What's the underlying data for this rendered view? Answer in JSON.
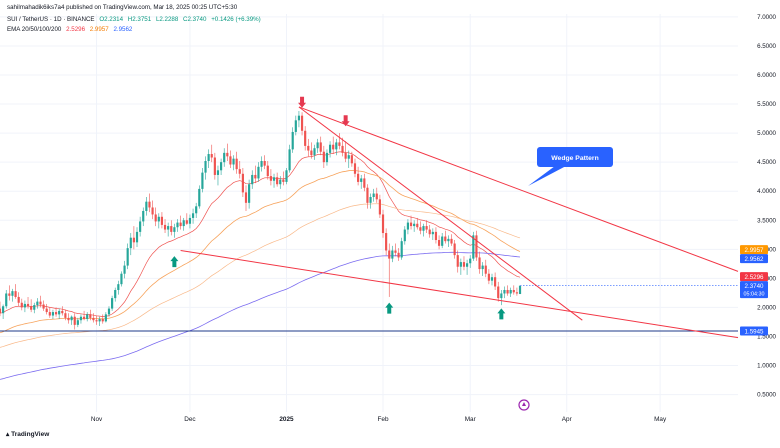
{
  "header": {
    "published": "sahilmahadik6iks7a4 published on TradingView.com, Mar 18, 2025 00:25 UTC+5:30",
    "symbol": "SUI / TetherUS · 1D · BINANCE",
    "open": "O2.2314",
    "high": "H2.3751",
    "low": "L2.2288",
    "close": "C2.3740",
    "change": "+0.1426 (+6.39%)",
    "ema_label": "EMA 20/50/100/200",
    "ema_values": [
      "2.5296",
      "2.9957",
      "2.9562"
    ]
  },
  "footer": {
    "logo_text": "TradingView"
  },
  "annotation": {
    "label": "Wedge Pattern"
  },
  "colors": {
    "up": "#26a69a",
    "down": "#ef5350",
    "ema20": "#ef5350",
    "ema50": "#f7a35c",
    "ema100": "#f9b98a",
    "ema200": "#7b6cf0",
    "trendline": "#f23645",
    "support": "#1e3a8a",
    "badge_blue": "#2962ff",
    "badge_orange": "#ff9800",
    "badge_red": "#f23645"
  },
  "chart_data": {
    "type": "candlestick",
    "y_axis": {
      "ticks": [
        "7.0000",
        "6.5000",
        "6.0000",
        "5.5000",
        "5.0000",
        "4.5000",
        "4.0000",
        "3.5000",
        "3.0000",
        "2.5000",
        "2.0000",
        "1.5000",
        "1.0000",
        "0.5000"
      ],
      "range": [
        0.2,
        7.05
      ]
    },
    "x_axis": {
      "ticks": [
        "Nov",
        "Dec",
        "2025",
        "Feb",
        "Mar",
        "Apr",
        "May"
      ]
    },
    "x_tick_dates": [
      "2024-11-01",
      "2024-12-01",
      "2025-01-01",
      "2025-02-01",
      "2025-03-01",
      "2025-04-01",
      "2025-05-01"
    ],
    "date_range": [
      "2024-10-01",
      "2025-05-26"
    ],
    "price_labels": [
      {
        "value": 2.9957,
        "text": "2.9957",
        "color": "#ff9800"
      },
      {
        "value": 2.9562,
        "text": "2.9562",
        "color": "#2962ff"
      },
      {
        "value": 2.5296,
        "text": "2.5296",
        "color": "#f23645"
      },
      {
        "value": 2.374,
        "text": "2.3740",
        "sub": "05:04:30",
        "color": "#2962ff"
      },
      {
        "value": 1.5945,
        "text": "1.5945",
        "color": "#2962ff"
      }
    ],
    "horizontal_line": {
      "value": 1.5945
    },
    "trendlines": [
      {
        "from": [
          "2024-11-28",
          2.98
        ],
        "to": [
          "2025-05-26",
          1.48
        ]
      },
      {
        "from": [
          "2025-01-05",
          5.45
        ],
        "to": [
          "2025-05-26",
          2.62
        ]
      },
      {
        "from": [
          "2025-01-05",
          5.45
        ],
        "to": [
          "2025-04-06",
          1.78
        ]
      }
    ],
    "markers": [
      {
        "date": "2025-01-06",
        "value": 5.42,
        "dir": "down"
      },
      {
        "date": "2025-01-20",
        "value": 5.1,
        "dir": "down"
      },
      {
        "date": "2024-11-26",
        "value": 2.9,
        "dir": "up"
      },
      {
        "date": "2025-02-03",
        "value": 2.1,
        "dir": "up"
      },
      {
        "date": "2025-03-11",
        "value": 2.0,
        "dir": "up"
      }
    ],
    "candles": [
      [
        "2024-10-01",
        1.98,
        2.1,
        1.85,
        1.9
      ],
      [
        "2024-10-02",
        1.9,
        2.05,
        1.8,
        2.02
      ],
      [
        "2024-10-03",
        2.02,
        2.3,
        1.98,
        2.24
      ],
      [
        "2024-10-04",
        2.24,
        2.38,
        2.12,
        2.2
      ],
      [
        "2024-10-05",
        2.2,
        2.32,
        2.1,
        2.28
      ],
      [
        "2024-10-06",
        2.28,
        2.4,
        2.15,
        2.18
      ],
      [
        "2024-10-07",
        2.18,
        2.26,
        2.02,
        2.08
      ],
      [
        "2024-10-08",
        2.08,
        2.15,
        1.95,
        2.0
      ],
      [
        "2024-10-09",
        2.0,
        2.12,
        1.92,
        2.06
      ],
      [
        "2024-10-10",
        2.06,
        2.18,
        1.98,
        2.02
      ],
      [
        "2024-10-11",
        2.02,
        2.14,
        1.92,
        1.96
      ],
      [
        "2024-10-12",
        1.96,
        2.08,
        1.9,
        2.04
      ],
      [
        "2024-10-13",
        2.04,
        2.16,
        1.98,
        2.1
      ],
      [
        "2024-10-14",
        2.1,
        2.2,
        2.0,
        2.05
      ],
      [
        "2024-10-15",
        2.05,
        2.12,
        1.94,
        1.98
      ],
      [
        "2024-10-16",
        1.98,
        2.06,
        1.88,
        1.92
      ],
      [
        "2024-10-17",
        1.92,
        2.0,
        1.82,
        1.86
      ],
      [
        "2024-10-18",
        1.86,
        1.96,
        1.8,
        1.92
      ],
      [
        "2024-10-19",
        1.92,
        2.0,
        1.84,
        1.88
      ],
      [
        "2024-10-20",
        1.88,
        1.98,
        1.8,
        1.94
      ],
      [
        "2024-10-21",
        1.94,
        2.02,
        1.86,
        1.9
      ],
      [
        "2024-10-22",
        1.9,
        1.96,
        1.78,
        1.82
      ],
      [
        "2024-10-23",
        1.82,
        1.9,
        1.72,
        1.78
      ],
      [
        "2024-10-24",
        1.78,
        1.86,
        1.7,
        1.84
      ],
      [
        "2024-10-25",
        1.84,
        1.9,
        1.62,
        1.7
      ],
      [
        "2024-10-26",
        1.7,
        1.82,
        1.66,
        1.78
      ],
      [
        "2024-10-27",
        1.78,
        1.88,
        1.72,
        1.84
      ],
      [
        "2024-10-28",
        1.84,
        1.94,
        1.78,
        1.8
      ],
      [
        "2024-10-29",
        1.8,
        1.92,
        1.76,
        1.88
      ],
      [
        "2024-10-30",
        1.88,
        1.96,
        1.78,
        1.82
      ],
      [
        "2024-10-31",
        1.82,
        1.9,
        1.74,
        1.78
      ],
      [
        "2024-11-01",
        1.78,
        1.86,
        1.7,
        1.76
      ],
      [
        "2024-11-02",
        1.76,
        1.84,
        1.68,
        1.8
      ],
      [
        "2024-11-03",
        1.8,
        1.88,
        1.72,
        1.76
      ],
      [
        "2024-11-04",
        1.76,
        1.92,
        1.74,
        1.88
      ],
      [
        "2024-11-05",
        1.88,
        2.02,
        1.84,
        1.98
      ],
      [
        "2024-11-06",
        1.98,
        2.2,
        1.94,
        2.16
      ],
      [
        "2024-11-07",
        2.16,
        2.34,
        2.1,
        2.3
      ],
      [
        "2024-11-08",
        2.3,
        2.46,
        2.22,
        2.4
      ],
      [
        "2024-11-09",
        2.4,
        2.62,
        2.36,
        2.58
      ],
      [
        "2024-11-10",
        2.58,
        2.8,
        2.5,
        2.72
      ],
      [
        "2024-11-11",
        2.72,
        3.1,
        2.66,
        3.02
      ],
      [
        "2024-11-12",
        3.02,
        3.28,
        2.9,
        3.2
      ],
      [
        "2024-11-13",
        3.2,
        3.4,
        3.0,
        3.12
      ],
      [
        "2024-11-14",
        3.12,
        3.38,
        3.04,
        3.3
      ],
      [
        "2024-11-15",
        3.3,
        3.56,
        3.22,
        3.48
      ],
      [
        "2024-11-16",
        3.48,
        3.72,
        3.4,
        3.66
      ],
      [
        "2024-11-17",
        3.66,
        3.9,
        3.58,
        3.82
      ],
      [
        "2024-11-18",
        3.82,
        3.96,
        3.64,
        3.72
      ],
      [
        "2024-11-19",
        3.72,
        3.84,
        3.52,
        3.6
      ],
      [
        "2024-11-20",
        3.6,
        3.72,
        3.4,
        3.48
      ],
      [
        "2024-11-21",
        3.48,
        3.62,
        3.36,
        3.56
      ],
      [
        "2024-11-22",
        3.56,
        3.64,
        3.36,
        3.42
      ],
      [
        "2024-11-23",
        3.42,
        3.52,
        3.28,
        3.34
      ],
      [
        "2024-11-24",
        3.34,
        3.46,
        3.22,
        3.4
      ],
      [
        "2024-11-25",
        3.4,
        3.5,
        3.24,
        3.3
      ],
      [
        "2024-11-26",
        3.3,
        3.44,
        3.2,
        3.38
      ],
      [
        "2024-11-27",
        3.38,
        3.52,
        3.3,
        3.46
      ],
      [
        "2024-11-28",
        3.46,
        3.58,
        3.34,
        3.4
      ],
      [
        "2024-11-29",
        3.4,
        3.54,
        3.32,
        3.5
      ],
      [
        "2024-11-30",
        3.5,
        3.62,
        3.42,
        3.44
      ],
      [
        "2024-12-01",
        3.44,
        3.6,
        3.36,
        3.54
      ],
      [
        "2024-12-02",
        3.54,
        3.7,
        3.44,
        3.62
      ],
      [
        "2024-12-03",
        3.62,
        3.8,
        3.54,
        3.74
      ],
      [
        "2024-12-04",
        3.74,
        4.1,
        3.7,
        4.04
      ],
      [
        "2024-12-05",
        4.04,
        4.4,
        3.98,
        4.32
      ],
      [
        "2024-12-06",
        4.32,
        4.6,
        4.2,
        4.52
      ],
      [
        "2024-12-07",
        4.52,
        4.72,
        4.4,
        4.64
      ],
      [
        "2024-12-08",
        4.64,
        4.8,
        4.5,
        4.58
      ],
      [
        "2024-12-09",
        4.58,
        4.66,
        4.2,
        4.28
      ],
      [
        "2024-12-10",
        4.28,
        4.44,
        4.1,
        4.36
      ],
      [
        "2024-12-11",
        4.36,
        4.56,
        4.28,
        4.5
      ],
      [
        "2024-12-12",
        4.5,
        4.74,
        4.42,
        4.66
      ],
      [
        "2024-12-13",
        4.66,
        4.82,
        4.52,
        4.6
      ],
      [
        "2024-12-14",
        4.6,
        4.7,
        4.4,
        4.46
      ],
      [
        "2024-12-15",
        4.46,
        4.62,
        4.36,
        4.56
      ],
      [
        "2024-12-16",
        4.56,
        4.68,
        4.3,
        4.38
      ],
      [
        "2024-12-17",
        4.38,
        4.52,
        4.22,
        4.3
      ],
      [
        "2024-12-18",
        4.3,
        4.4,
        3.9,
        3.98
      ],
      [
        "2024-12-19",
        3.98,
        4.1,
        3.66,
        3.8
      ],
      [
        "2024-12-20",
        3.8,
        4.2,
        3.7,
        4.12
      ],
      [
        "2024-12-21",
        4.12,
        4.36,
        4.04,
        4.28
      ],
      [
        "2024-12-22",
        4.28,
        4.44,
        4.14,
        4.22
      ],
      [
        "2024-12-23",
        4.22,
        4.5,
        4.16,
        4.42
      ],
      [
        "2024-12-24",
        4.42,
        4.6,
        4.34,
        4.52
      ],
      [
        "2024-12-25",
        4.52,
        4.62,
        4.38,
        4.44
      ],
      [
        "2024-12-26",
        4.44,
        4.52,
        4.2,
        4.26
      ],
      [
        "2024-12-27",
        4.26,
        4.38,
        4.1,
        4.18
      ],
      [
        "2024-12-28",
        4.18,
        4.3,
        4.06,
        4.24
      ],
      [
        "2024-12-29",
        4.24,
        4.32,
        4.08,
        4.12
      ],
      [
        "2024-12-30",
        4.12,
        4.26,
        4.04,
        4.2
      ],
      [
        "2024-12-31",
        4.2,
        4.34,
        4.1,
        4.16
      ],
      [
        "2025-01-01",
        4.16,
        4.4,
        4.12,
        4.36
      ],
      [
        "2025-01-02",
        4.36,
        4.8,
        4.32,
        4.72
      ],
      [
        "2025-01-03",
        4.72,
        5.1,
        4.66,
        5.02
      ],
      [
        "2025-01-04",
        5.02,
        5.3,
        4.96,
        5.22
      ],
      [
        "2025-01-05",
        5.22,
        5.38,
        5.1,
        5.3
      ],
      [
        "2025-01-06",
        5.3,
        5.36,
        4.96,
        5.04
      ],
      [
        "2025-01-07",
        5.04,
        5.12,
        4.7,
        4.78
      ],
      [
        "2025-01-08",
        4.78,
        4.9,
        4.6,
        4.7
      ],
      [
        "2025-01-09",
        4.7,
        4.84,
        4.56,
        4.62
      ],
      [
        "2025-01-10",
        4.62,
        4.8,
        4.54,
        4.74
      ],
      [
        "2025-01-11",
        4.74,
        4.9,
        4.66,
        4.84
      ],
      [
        "2025-01-12",
        4.84,
        4.94,
        4.62,
        4.68
      ],
      [
        "2025-01-13",
        4.68,
        4.78,
        4.4,
        4.5
      ],
      [
        "2025-01-14",
        4.5,
        4.72,
        4.44,
        4.66
      ],
      [
        "2025-01-15",
        4.66,
        4.86,
        4.58,
        4.8
      ],
      [
        "2025-01-16",
        4.8,
        4.94,
        4.64,
        4.72
      ],
      [
        "2025-01-17",
        4.72,
        4.9,
        4.62,
        4.84
      ],
      [
        "2025-01-18",
        4.84,
        5.0,
        4.72,
        4.78
      ],
      [
        "2025-01-19",
        4.78,
        4.92,
        4.6,
        4.66
      ],
      [
        "2025-01-20",
        4.66,
        4.86,
        4.5,
        4.56
      ],
      [
        "2025-01-21",
        4.56,
        4.7,
        4.4,
        4.62
      ],
      [
        "2025-01-22",
        4.62,
        4.68,
        4.42,
        4.48
      ],
      [
        "2025-01-23",
        4.48,
        4.56,
        4.24,
        4.3
      ],
      [
        "2025-01-24",
        4.3,
        4.42,
        4.1,
        4.16
      ],
      [
        "2025-01-25",
        4.16,
        4.28,
        4.04,
        4.22
      ],
      [
        "2025-01-26",
        4.22,
        4.3,
        4.0,
        4.06
      ],
      [
        "2025-01-27",
        4.06,
        4.12,
        3.7,
        3.8
      ],
      [
        "2025-01-28",
        3.8,
        3.96,
        3.7,
        3.9
      ],
      [
        "2025-01-29",
        3.9,
        4.04,
        3.82,
        3.96
      ],
      [
        "2025-01-30",
        3.96,
        4.06,
        3.8,
        3.86
      ],
      [
        "2025-01-31",
        3.86,
        3.94,
        3.54,
        3.6
      ],
      [
        "2025-02-01",
        3.6,
        3.68,
        3.2,
        3.28
      ],
      [
        "2025-02-02",
        3.28,
        3.36,
        2.9,
        2.98
      ],
      [
        "2025-02-03",
        2.98,
        3.1,
        2.18,
        2.84
      ],
      [
        "2025-02-04",
        2.84,
        3.06,
        2.78,
        2.98
      ],
      [
        "2025-02-05",
        2.98,
        3.1,
        2.88,
        2.94
      ],
      [
        "2025-02-06",
        2.94,
        3.02,
        2.8,
        2.86
      ],
      [
        "2025-02-07",
        2.86,
        3.2,
        2.82,
        3.14
      ],
      [
        "2025-02-08",
        3.14,
        3.4,
        3.08,
        3.34
      ],
      [
        "2025-02-09",
        3.34,
        3.52,
        3.26,
        3.46
      ],
      [
        "2025-02-10",
        3.46,
        3.58,
        3.34,
        3.4
      ],
      [
        "2025-02-11",
        3.4,
        3.5,
        3.3,
        3.44
      ],
      [
        "2025-02-12",
        3.44,
        3.54,
        3.34,
        3.38
      ],
      [
        "2025-02-13",
        3.38,
        3.48,
        3.26,
        3.32
      ],
      [
        "2025-02-14",
        3.32,
        3.44,
        3.22,
        3.4
      ],
      [
        "2025-02-15",
        3.4,
        3.5,
        3.28,
        3.34
      ],
      [
        "2025-02-16",
        3.34,
        3.42,
        3.2,
        3.26
      ],
      [
        "2025-02-17",
        3.26,
        3.36,
        3.16,
        3.3
      ],
      [
        "2025-02-18",
        3.3,
        3.38,
        3.1,
        3.16
      ],
      [
        "2025-02-19",
        3.16,
        3.24,
        3.0,
        3.06
      ],
      [
        "2025-02-20",
        3.06,
        3.28,
        3.02,
        3.22
      ],
      [
        "2025-02-21",
        3.22,
        3.32,
        3.1,
        3.14
      ],
      [
        "2025-02-22",
        3.14,
        3.24,
        3.04,
        3.18
      ],
      [
        "2025-02-23",
        3.18,
        3.26,
        3.06,
        3.1
      ],
      [
        "2025-02-24",
        3.1,
        3.16,
        2.84,
        2.9
      ],
      [
        "2025-02-25",
        2.9,
        2.98,
        2.6,
        2.7
      ],
      [
        "2025-02-26",
        2.7,
        2.84,
        2.56,
        2.78
      ],
      [
        "2025-02-27",
        2.78,
        2.88,
        2.64,
        2.7
      ],
      [
        "2025-02-28",
        2.7,
        2.82,
        2.56,
        2.76
      ],
      [
        "2025-03-01",
        2.76,
        2.9,
        2.68,
        2.84
      ],
      [
        "2025-03-02",
        2.84,
        3.3,
        2.8,
        3.24
      ],
      [
        "2025-03-03",
        3.24,
        3.32,
        2.8,
        2.86
      ],
      [
        "2025-03-04",
        2.86,
        2.96,
        2.58,
        2.66
      ],
      [
        "2025-03-05",
        2.66,
        2.78,
        2.54,
        2.72
      ],
      [
        "2025-03-06",
        2.72,
        2.82,
        2.52,
        2.58
      ],
      [
        "2025-03-07",
        2.58,
        2.66,
        2.4,
        2.46
      ],
      [
        "2025-03-08",
        2.46,
        2.58,
        2.38,
        2.52
      ],
      [
        "2025-03-09",
        2.52,
        2.6,
        2.3,
        2.36
      ],
      [
        "2025-03-10",
        2.36,
        2.44,
        2.1,
        2.16
      ],
      [
        "2025-03-11",
        2.16,
        2.3,
        2.04,
        2.24
      ],
      [
        "2025-03-12",
        2.24,
        2.36,
        2.16,
        2.3
      ],
      [
        "2025-03-13",
        2.3,
        2.38,
        2.2,
        2.24
      ],
      [
        "2025-03-14",
        2.24,
        2.34,
        2.18,
        2.3
      ],
      [
        "2025-03-15",
        2.3,
        2.38,
        2.22,
        2.26
      ],
      [
        "2025-03-16",
        2.26,
        2.34,
        2.2,
        2.24
      ],
      [
        "2025-03-17",
        2.2314,
        2.3751,
        2.2288,
        2.374
      ]
    ]
  }
}
